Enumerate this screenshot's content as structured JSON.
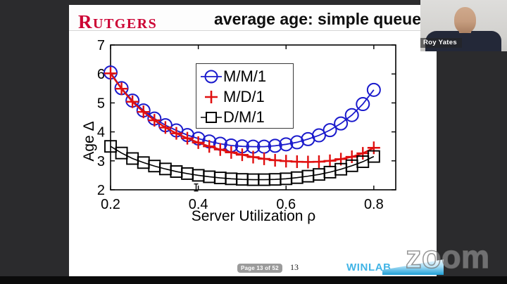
{
  "header": {
    "logo_text": "RUTGERS",
    "title": "average age: simple queue"
  },
  "webcam": {
    "name": "Roy Yates"
  },
  "footer": {
    "page_badge": "Page 13 of 52",
    "page_number": "13",
    "winlab": "WINLAB"
  },
  "watermark": {
    "zoom_label": "zoom"
  },
  "colors": {
    "mm1_blue": "#1a1acc",
    "md1_red": "#e01010",
    "dm1_black": "#000000",
    "rutgers_red": "#cc0033",
    "winlab_blue": "#41b4e6",
    "background_dark": "#2b2b2d"
  },
  "chart_data": {
    "type": "line",
    "title": "",
    "xlabel": "Server Utilization ρ",
    "ylabel": "Age Δ",
    "xlim": [
      0.2,
      0.85
    ],
    "ylim": [
      2,
      7
    ],
    "x_ticks": [
      0.2,
      0.4,
      0.6,
      0.8
    ],
    "x_tick_labels": [
      "0.2",
      "0.4",
      "0.6",
      "0.8"
    ],
    "y_ticks": [
      2,
      3,
      4,
      5,
      6,
      7
    ],
    "y_tick_labels": [
      "2",
      "3",
      "4",
      "5",
      "6",
      "7"
    ],
    "grid": false,
    "legend_position": "upper-center inside",
    "x": [
      0.2,
      0.225,
      0.25,
      0.275,
      0.3,
      0.325,
      0.35,
      0.375,
      0.4,
      0.425,
      0.45,
      0.475,
      0.5,
      0.525,
      0.55,
      0.575,
      0.6,
      0.625,
      0.65,
      0.675,
      0.7,
      0.725,
      0.75,
      0.775,
      0.8
    ],
    "series": [
      {
        "name": "M/M/1",
        "marker": "circle",
        "color": "#1a1acc",
        "values": [
          6.05,
          5.51,
          5.08,
          4.74,
          4.46,
          4.23,
          4.05,
          3.89,
          3.77,
          3.67,
          3.59,
          3.53,
          3.5,
          3.49,
          3.49,
          3.52,
          3.57,
          3.64,
          3.75,
          3.88,
          4.06,
          4.29,
          4.58,
          4.96,
          5.45
        ]
      },
      {
        "name": "M/D/1",
        "marker": "plus",
        "color": "#e01010",
        "values": [
          6.02,
          5.49,
          5.04,
          4.69,
          4.4,
          4.15,
          3.95,
          3.78,
          3.63,
          3.5,
          3.39,
          3.29,
          3.21,
          3.13,
          3.07,
          3.02,
          2.99,
          2.97,
          2.96,
          2.97,
          3.0,
          3.06,
          3.14,
          3.26,
          3.45
        ]
      },
      {
        "name": "D/M/1",
        "marker": "square",
        "color": "#000000",
        "values": [
          3.5,
          3.27,
          3.08,
          2.94,
          2.82,
          2.72,
          2.63,
          2.56,
          2.5,
          2.45,
          2.41,
          2.38,
          2.36,
          2.35,
          2.35,
          2.36,
          2.38,
          2.42,
          2.47,
          2.53,
          2.61,
          2.71,
          2.83,
          2.97,
          3.15
        ]
      }
    ],
    "annotation": {
      "type": "error-bar",
      "x": 0.395,
      "y": 2.08
    }
  }
}
